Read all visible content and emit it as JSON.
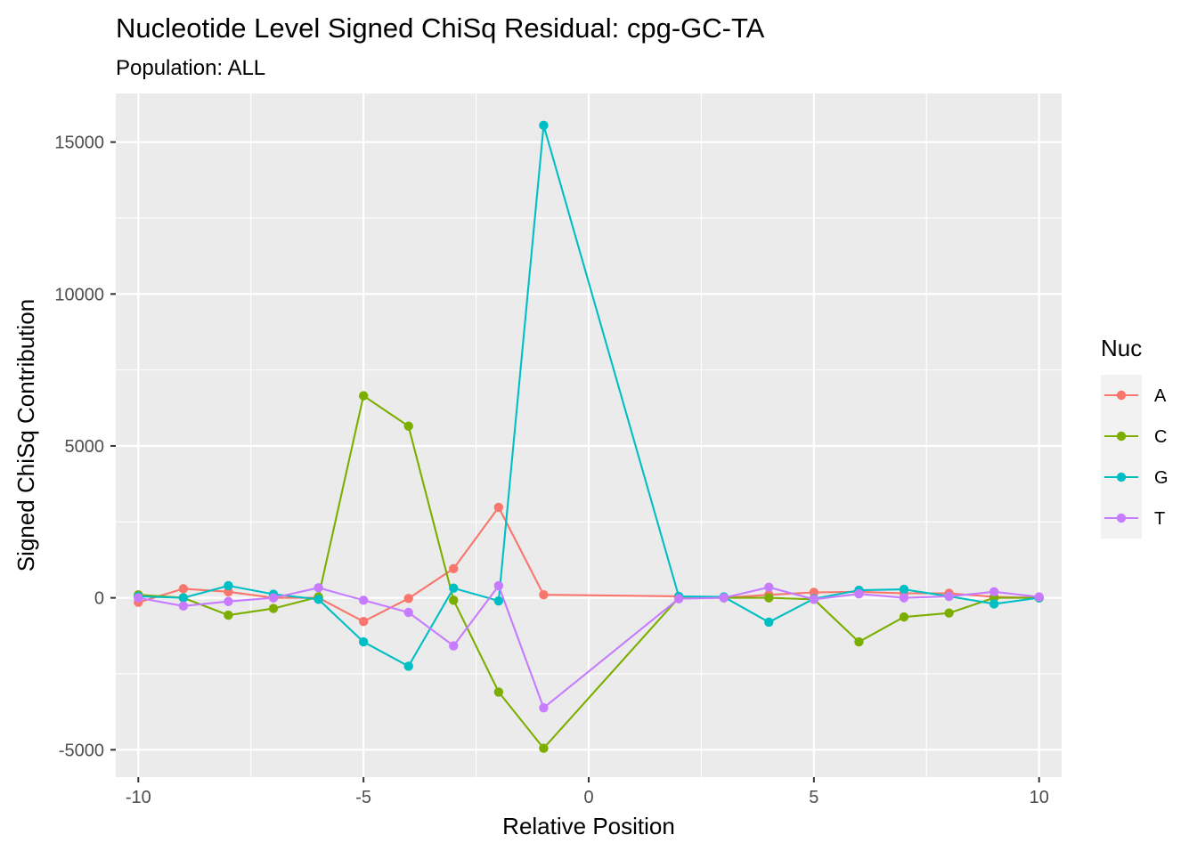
{
  "chart_data": {
    "type": "line",
    "title": "Nucleotide Level Signed ChiSq Residual: cpg-GC-TA",
    "subtitle": "Population: ALL",
    "xlabel": "Relative Position",
    "ylabel": "Signed ChiSq Contribution",
    "xlim": [
      -10.5,
      10.5
    ],
    "ylim": [
      -5900,
      16600
    ],
    "xticks": [
      -10,
      -5,
      0,
      5,
      10
    ],
    "yticks": [
      -5000,
      0,
      5000,
      10000,
      15000
    ],
    "xtick_labels": [
      "-10",
      "-5",
      "0",
      "5",
      "10"
    ],
    "ytick_labels": [
      "-5000",
      "0",
      "5000",
      "10000",
      "15000"
    ],
    "grid": true,
    "legend": {
      "title": "Nuc",
      "position": "right"
    },
    "x": [
      -10,
      -9,
      -8,
      -7,
      -6,
      -5,
      -4,
      -3,
      -2,
      -1,
      2,
      3,
      4,
      5,
      6,
      7,
      8,
      9,
      10
    ],
    "series": [
      {
        "name": "A",
        "color": "#F8766D",
        "values": [
          -150,
          300,
          200,
          0,
          0,
          -780,
          -20,
          960,
          2980,
          100,
          50,
          0,
          100,
          180,
          200,
          150,
          150,
          30,
          0
        ]
      },
      {
        "name": "C",
        "color": "#7CAE00",
        "values": [
          100,
          0,
          -570,
          -350,
          30,
          6650,
          5650,
          -80,
          -3100,
          -4950,
          0,
          0,
          0,
          -50,
          -1450,
          -630,
          -500,
          0,
          0
        ]
      },
      {
        "name": "G",
        "color": "#00BFC4",
        "values": [
          50,
          0,
          400,
          120,
          -50,
          -1450,
          -2250,
          320,
          -100,
          15550,
          50,
          30,
          -800,
          -30,
          250,
          280,
          50,
          -200,
          0
        ]
      },
      {
        "name": "T",
        "color": "#C77CFF",
        "values": [
          0,
          -270,
          -120,
          0,
          330,
          -80,
          -480,
          -1580,
          400,
          -3620,
          -30,
          0,
          350,
          -50,
          130,
          0,
          50,
          200,
          30
        ]
      }
    ]
  }
}
